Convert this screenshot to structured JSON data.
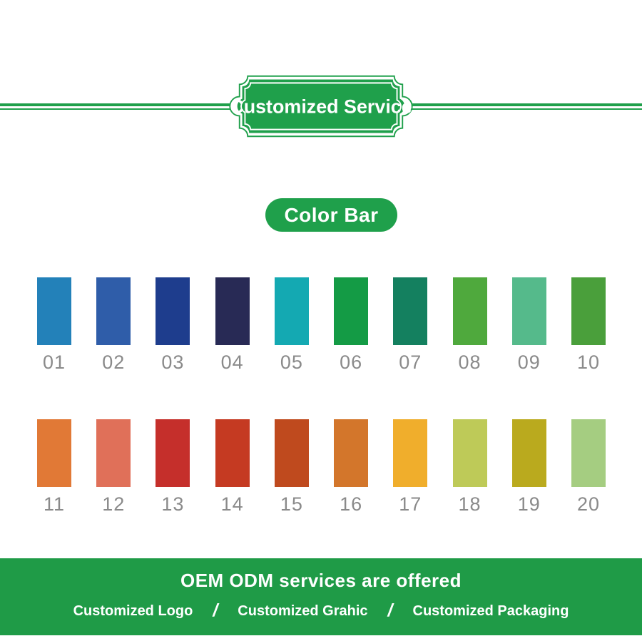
{
  "banner": {
    "title": "Customized Service"
  },
  "section": {
    "title": "Color Bar"
  },
  "color_bar": {
    "rows": [
      {
        "swatches": [
          {
            "number": "01",
            "color": "#2381B9"
          },
          {
            "number": "02",
            "color": "#2F5DA9"
          },
          {
            "number": "03",
            "color": "#1E3D8D"
          },
          {
            "number": "04",
            "color": "#282A55"
          },
          {
            "number": "05",
            "color": "#14A9B2"
          },
          {
            "number": "06",
            "color": "#149B45"
          },
          {
            "number": "07",
            "color": "#14805F"
          },
          {
            "number": "08",
            "color": "#4FA93D"
          },
          {
            "number": "09",
            "color": "#55BA8B"
          },
          {
            "number": "10",
            "color": "#4A9F3B"
          }
        ]
      },
      {
        "swatches": [
          {
            "number": "11",
            "color": "#E17936"
          },
          {
            "number": "12",
            "color": "#E07059"
          },
          {
            "number": "13",
            "color": "#C52F2B"
          },
          {
            "number": "14",
            "color": "#C53A22"
          },
          {
            "number": "15",
            "color": "#BF4A1E"
          },
          {
            "number": "16",
            "color": "#D3762B"
          },
          {
            "number": "17",
            "color": "#F0AE2C"
          },
          {
            "number": "18",
            "color": "#BECA58"
          },
          {
            "number": "19",
            "color": "#BAAA1E"
          },
          {
            "number": "20",
            "color": "#A5CD81"
          }
        ]
      }
    ]
  },
  "footer": {
    "headline": "OEM ODM services are offered",
    "items": [
      "Customized Logo",
      "Customized Grahic",
      "Customized Packaging"
    ],
    "separator": "/"
  },
  "colors": {
    "brand_green": "#1FA04B",
    "footer_green": "#1F9B47",
    "label_gray": "#8A8A8A"
  }
}
